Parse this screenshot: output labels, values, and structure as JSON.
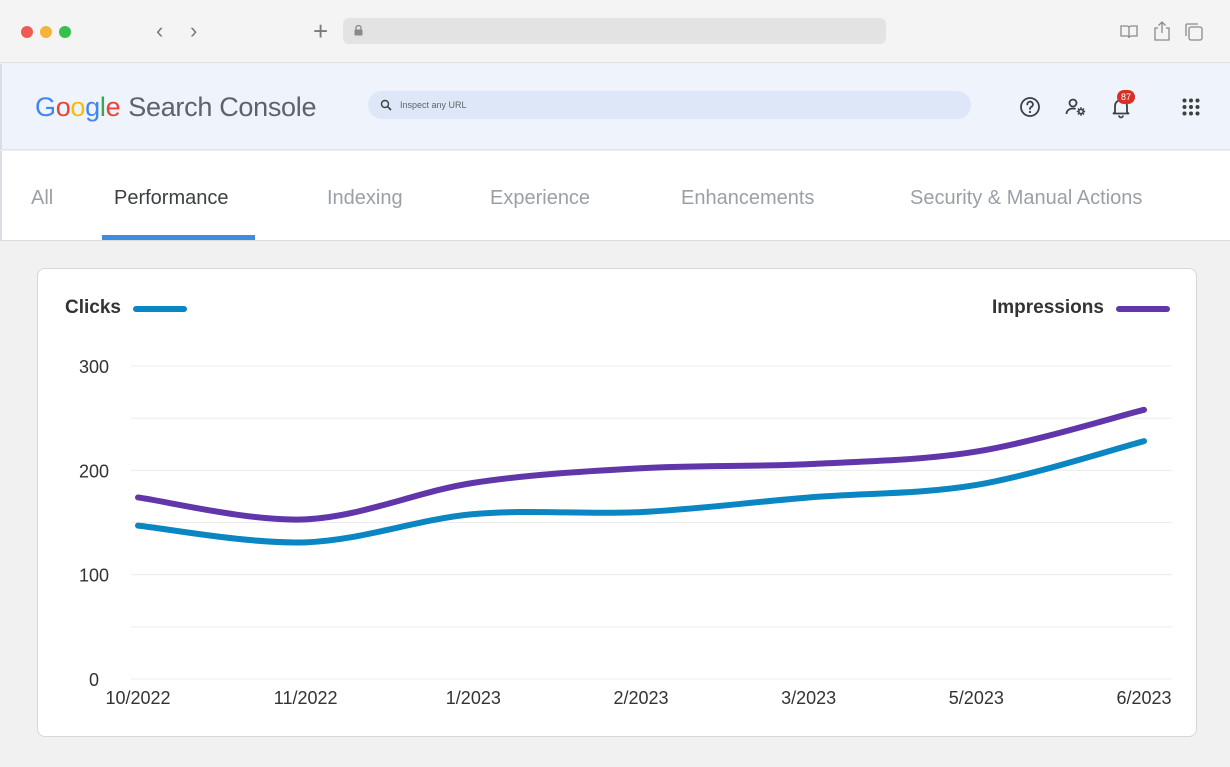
{
  "browser": {
    "icons": [
      "back-chevron",
      "forward-chevron",
      "new-tab-plus",
      "lock",
      "reader",
      "share",
      "tabs"
    ],
    "chevron_back": "‹",
    "chevron_forward": "›",
    "new_tab": "+"
  },
  "header": {
    "logo_letters": [
      "G",
      "o",
      "o",
      "g",
      "l",
      "e"
    ],
    "product_name": "Search Console",
    "search_placeholder": "Inspect any URL",
    "notification_count": "87"
  },
  "tabs": [
    {
      "label": "All",
      "active": false
    },
    {
      "label": "Performance",
      "active": true
    },
    {
      "label": "Indexing",
      "active": false
    },
    {
      "label": "Experience",
      "active": false
    },
    {
      "label": "Enhancements",
      "active": false
    },
    {
      "label": "Security & Manual Actions",
      "active": false
    }
  ],
  "colors": {
    "clicks": "#0a86c2",
    "impressions": "#6236ab",
    "tab_active_underline": "#3c8fe0"
  },
  "chart_data": {
    "type": "line",
    "x": [
      "10/2022",
      "11/2022",
      "1/2023",
      "2/2023",
      "3/2023",
      "5/2023",
      "6/2023"
    ],
    "series": [
      {
        "name": "Clicks",
        "values": [
          147,
          131,
          158,
          160,
          174,
          186,
          228
        ]
      },
      {
        "name": "Impressions",
        "values": [
          174,
          153,
          188,
          202,
          206,
          218,
          258
        ]
      }
    ],
    "ylim": [
      0,
      300
    ],
    "yticks": [
      "300",
      "200",
      "100",
      "0"
    ],
    "legend": [
      "top-left",
      "top-right"
    ],
    "grid": true
  }
}
